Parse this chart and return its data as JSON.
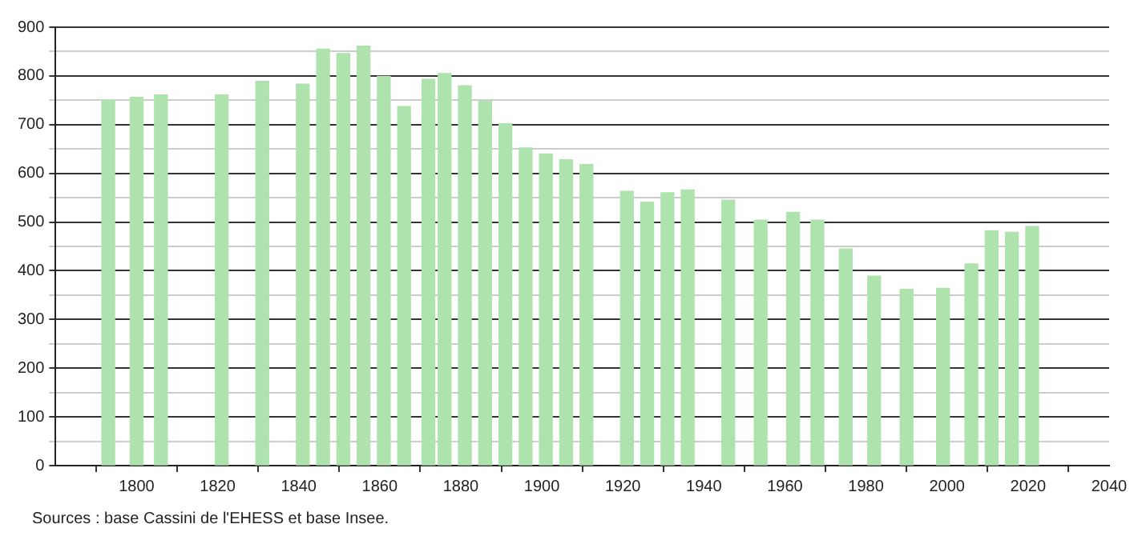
{
  "chart_data": {
    "type": "bar",
    "x": [
      1793,
      1800,
      1806,
      1821,
      1831,
      1841,
      1846,
      1851,
      1856,
      1861,
      1866,
      1872,
      1876,
      1881,
      1886,
      1891,
      1896,
      1901,
      1906,
      1911,
      1921,
      1926,
      1931,
      1936,
      1946,
      1954,
      1962,
      1968,
      1975,
      1982,
      1990,
      1999,
      2006,
      2011,
      2016,
      2021
    ],
    "values": [
      750,
      756,
      761,
      761,
      789,
      783,
      855,
      846,
      861,
      799,
      737,
      793,
      805,
      780,
      748,
      702,
      652,
      640,
      628,
      618,
      563,
      541,
      560,
      566,
      545,
      504,
      520,
      504,
      445,
      389,
      362,
      364,
      414,
      482,
      479,
      491
    ],
    "color": "#aee3ad",
    "xlim": [
      1780,
      2040
    ],
    "xticks": [
      1800,
      1820,
      1840,
      1860,
      1880,
      1900,
      1920,
      1940,
      1960,
      1980,
      2000,
      2020,
      2040
    ],
    "ylim": [
      0,
      900
    ],
    "yticks": [
      0,
      {
        "value": 50,
        "label": null
      },
      100,
      {
        "value": 150,
        "label": null
      },
      200,
      {
        "value": 250,
        "label": null
      },
      300,
      {
        "value": 350,
        "label": null
      },
      400,
      {
        "value": 450,
        "label": null
      },
      500,
      {
        "value": 550,
        "label": null
      },
      600,
      {
        "value": 650,
        "label": null
      },
      700,
      {
        "value": 750,
        "label": null
      },
      800,
      {
        "value": 850,
        "label": null
      },
      900
    ],
    "grid": "y",
    "annotations": [
      "Sources : base Cassini de l'EHESS et base Insee."
    ]
  }
}
